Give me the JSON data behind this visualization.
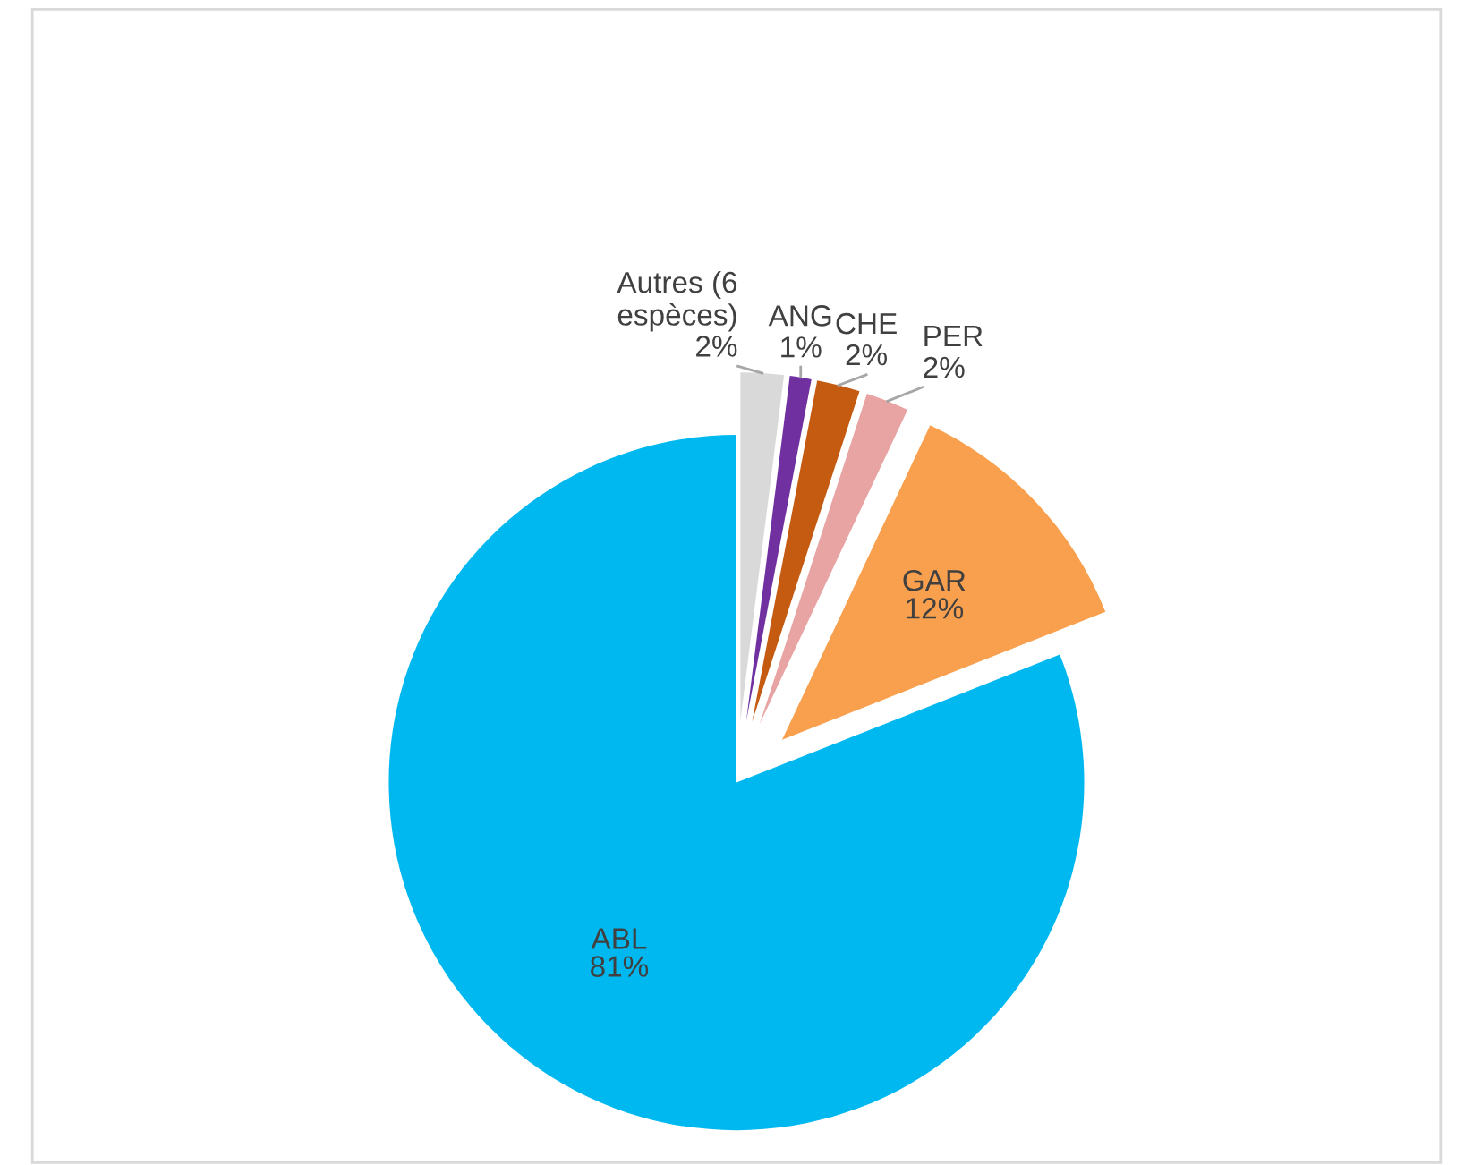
{
  "chart_data": {
    "type": "pie",
    "categories": [
      "Autres (6\nespèces)",
      "ANG",
      "CHE",
      "PER",
      "GAR",
      "ABL"
    ],
    "values": [
      2,
      1,
      2,
      2,
      12,
      81
    ],
    "colors": [
      "#d9d9d9",
      "#7030a0",
      "#c55a11",
      "#e8a3a3",
      "#f9a04e",
      "#00b8f0"
    ],
    "legend": false,
    "value_labels": [
      "2%",
      "1%",
      "2%",
      "2%",
      "12%",
      "81%"
    ]
  }
}
